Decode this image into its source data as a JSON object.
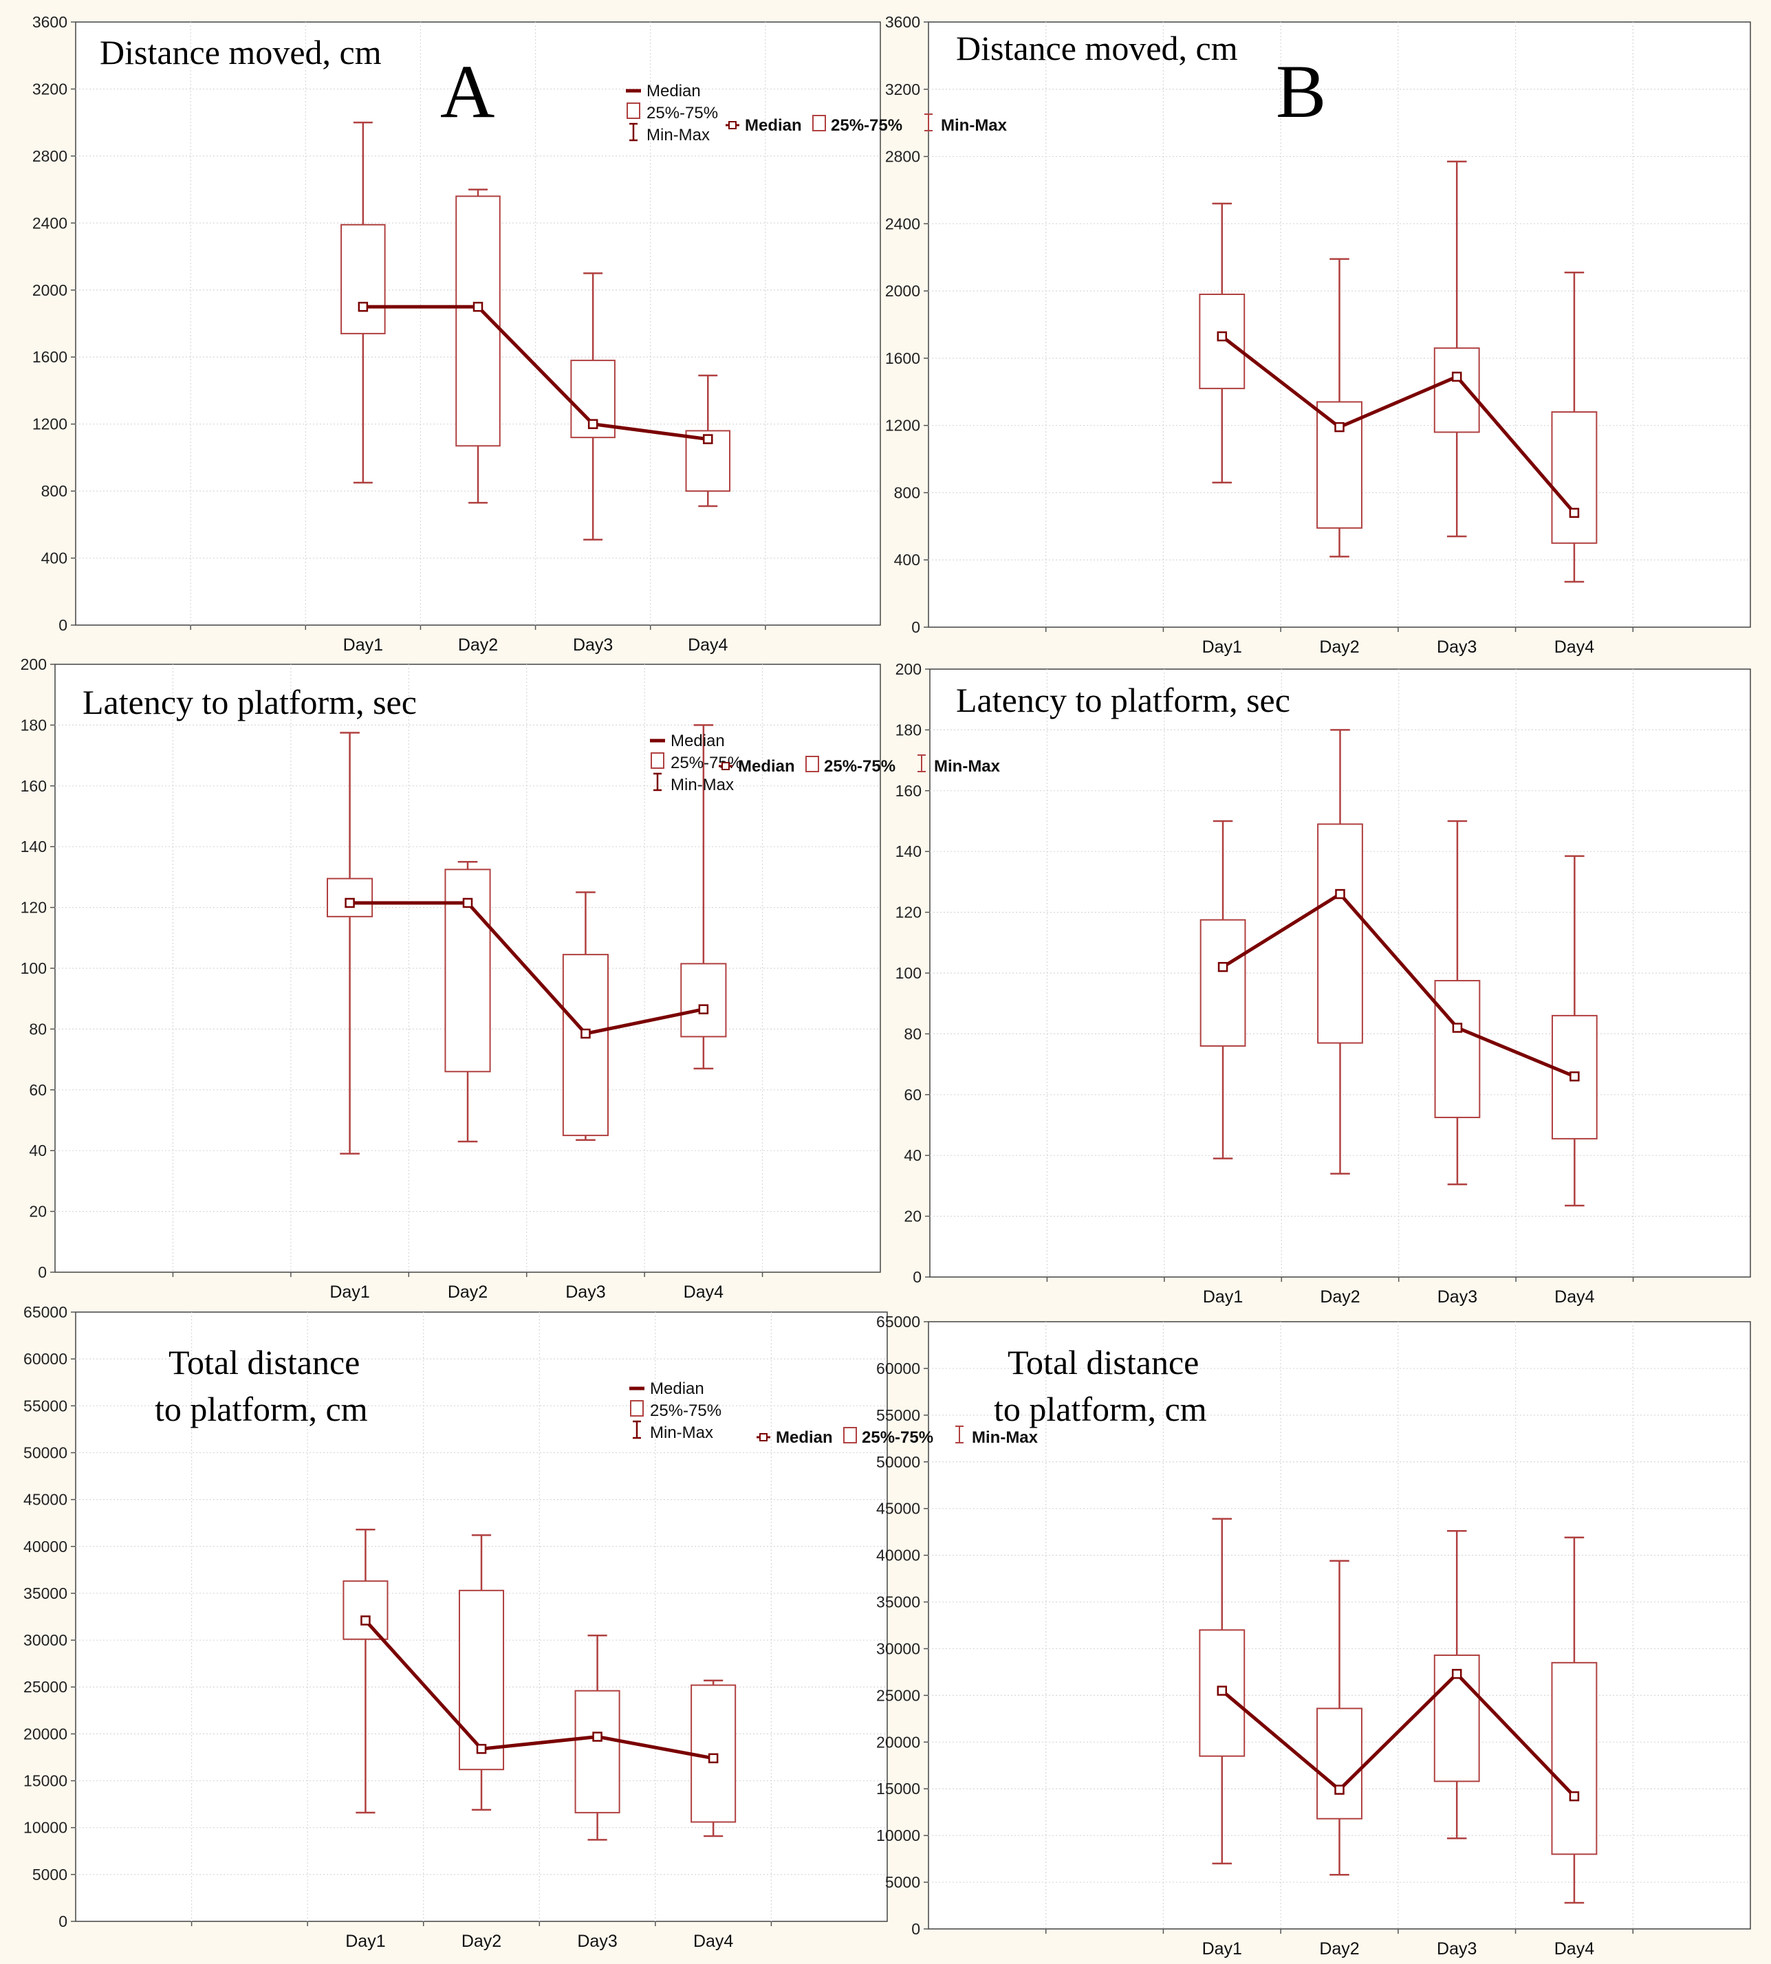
{
  "colors": {
    "series": "#7a0000",
    "box": "#b04040",
    "grid": "#d8d8d8",
    "axis": "#555555"
  },
  "chart_data": [
    {
      "type": "boxplot",
      "panel": "A",
      "title": "Distance moved, cm",
      "categories": [
        "Day1",
        "Day2",
        "Day3",
        "Day4"
      ],
      "ylim": [
        0,
        3600
      ],
      "yticks": [
        0,
        400,
        800,
        1200,
        1600,
        2000,
        2400,
        2800,
        3200,
        3600
      ],
      "series": [
        {
          "name": "Median",
          "values": [
            1900,
            1900,
            1200,
            1110
          ]
        },
        {
          "name": "25%-75%",
          "q1": [
            1740,
            1070,
            1120,
            800
          ],
          "q3": [
            2390,
            2560,
            1580,
            1160
          ]
        },
        {
          "name": "Min-Max",
          "min": [
            850,
            730,
            510,
            710
          ],
          "max": [
            3000,
            2600,
            2100,
            1490
          ]
        }
      ],
      "legend": [
        "Median",
        "25%-75%",
        "Min-Max"
      ],
      "legend_position": "top-right-stacked",
      "grid": true
    },
    {
      "type": "boxplot",
      "panel": "B",
      "title": "Distance moved, cm",
      "categories": [
        "Day1",
        "Day2",
        "Day3",
        "Day4"
      ],
      "ylim": [
        0,
        3600
      ],
      "yticks": [
        0,
        400,
        800,
        1200,
        1600,
        2000,
        2400,
        2800,
        3200,
        3600
      ],
      "series": [
        {
          "name": "Median",
          "values": [
            1730,
            1190,
            1490,
            680
          ]
        },
        {
          "name": "25%-75%",
          "q1": [
            1420,
            590,
            1160,
            500
          ],
          "q3": [
            1980,
            1340,
            1660,
            1280
          ]
        },
        {
          "name": "Min-Max",
          "min": [
            860,
            420,
            540,
            270
          ],
          "max": [
            2520,
            2190,
            2770,
            2110
          ]
        }
      ],
      "legend": [
        "Median",
        "25%-75%",
        "Min-Max"
      ],
      "legend_position": "top-right-row",
      "grid": true
    },
    {
      "type": "boxplot",
      "panel": "A",
      "title": "Latency to platform, sec",
      "categories": [
        "Day1",
        "Day2",
        "Day3",
        "Day4"
      ],
      "ylim": [
        0,
        200
      ],
      "yticks": [
        0,
        20,
        40,
        60,
        80,
        100,
        120,
        140,
        160,
        180,
        200
      ],
      "series": [
        {
          "name": "Median",
          "values": [
            121.5,
            121.5,
            78.5,
            86.5
          ]
        },
        {
          "name": "25%-75%",
          "q1": [
            117,
            66,
            45,
            77.5
          ],
          "q3": [
            129.5,
            132.5,
            104.5,
            101.5
          ]
        },
        {
          "name": "Min-Max",
          "min": [
            39,
            43,
            43.5,
            67
          ],
          "max": [
            177.5,
            135,
            125,
            180
          ]
        }
      ],
      "legend": [
        "Median",
        "25%-75%",
        "Min-Max"
      ],
      "legend_position": "top-right-stacked",
      "grid": true
    },
    {
      "type": "boxplot",
      "panel": "B",
      "title": "Latency to platform, sec",
      "categories": [
        "Day1",
        "Day2",
        "Day3",
        "Day4"
      ],
      "ylim": [
        0,
        200
      ],
      "yticks": [
        0,
        20,
        40,
        60,
        80,
        100,
        120,
        140,
        160,
        180,
        200
      ],
      "series": [
        {
          "name": "Median",
          "values": [
            102,
            126,
            82,
            66
          ]
        },
        {
          "name": "25%-75%",
          "q1": [
            76,
            77,
            52.5,
            45.5
          ],
          "q3": [
            117.5,
            149,
            97.5,
            86
          ]
        },
        {
          "name": "Min-Max",
          "min": [
            39,
            34,
            30.5,
            23.5
          ],
          "max": [
            150,
            180,
            150,
            138.5
          ]
        }
      ],
      "legend": [
        "Median",
        "25%-75%",
        "Min-Max"
      ],
      "legend_position": "top-right-row",
      "grid": true
    },
    {
      "type": "boxplot",
      "panel": "A",
      "title": "Total distance to platform, cm",
      "title_lines": [
        "Total distance",
        "to platform, cm"
      ],
      "categories": [
        "Day1",
        "Day2",
        "Day3",
        "Day4"
      ],
      "ylim": [
        0,
        65000
      ],
      "yticks": [
        0,
        5000,
        10000,
        15000,
        20000,
        25000,
        30000,
        35000,
        40000,
        45000,
        50000,
        55000,
        60000,
        65000
      ],
      "series": [
        {
          "name": "Median",
          "values": [
            32100,
            18400,
            19700,
            17400
          ]
        },
        {
          "name": "25%-75%",
          "q1": [
            30100,
            16200,
            11600,
            10600
          ],
          "q3": [
            36300,
            35300,
            24600,
            25200
          ]
        },
        {
          "name": "Min-Max",
          "min": [
            11600,
            11900,
            8700,
            9100
          ],
          "max": [
            41800,
            41200,
            30500,
            25700
          ]
        }
      ],
      "legend": [
        "Median",
        "25%-75%",
        "Min-Max"
      ],
      "legend_position": "top-right-stacked",
      "grid": true
    },
    {
      "type": "boxplot",
      "panel": "B",
      "title": "Total distance to platform, cm",
      "title_lines": [
        "Total distance",
        "to platform, cm"
      ],
      "categories": [
        "Day1",
        "Day2",
        "Day3",
        "Day4"
      ],
      "ylim": [
        0,
        65000
      ],
      "yticks": [
        0,
        5000,
        10000,
        15000,
        20000,
        25000,
        30000,
        35000,
        40000,
        45000,
        50000,
        55000,
        60000,
        65000
      ],
      "series": [
        {
          "name": "Median",
          "values": [
            25500,
            14900,
            27300,
            14200
          ]
        },
        {
          "name": "25%-75%",
          "q1": [
            18500,
            11800,
            15800,
            8000
          ],
          "q3": [
            32000,
            23600,
            29300,
            28500
          ]
        },
        {
          "name": "Min-Max",
          "min": [
            7000,
            5800,
            9700,
            2800
          ],
          "max": [
            43900,
            39400,
            42600,
            41900
          ]
        }
      ],
      "legend": [
        "Median",
        "25%-75%",
        "Min-Max"
      ],
      "legend_position": "top-right-row",
      "grid": true
    }
  ]
}
